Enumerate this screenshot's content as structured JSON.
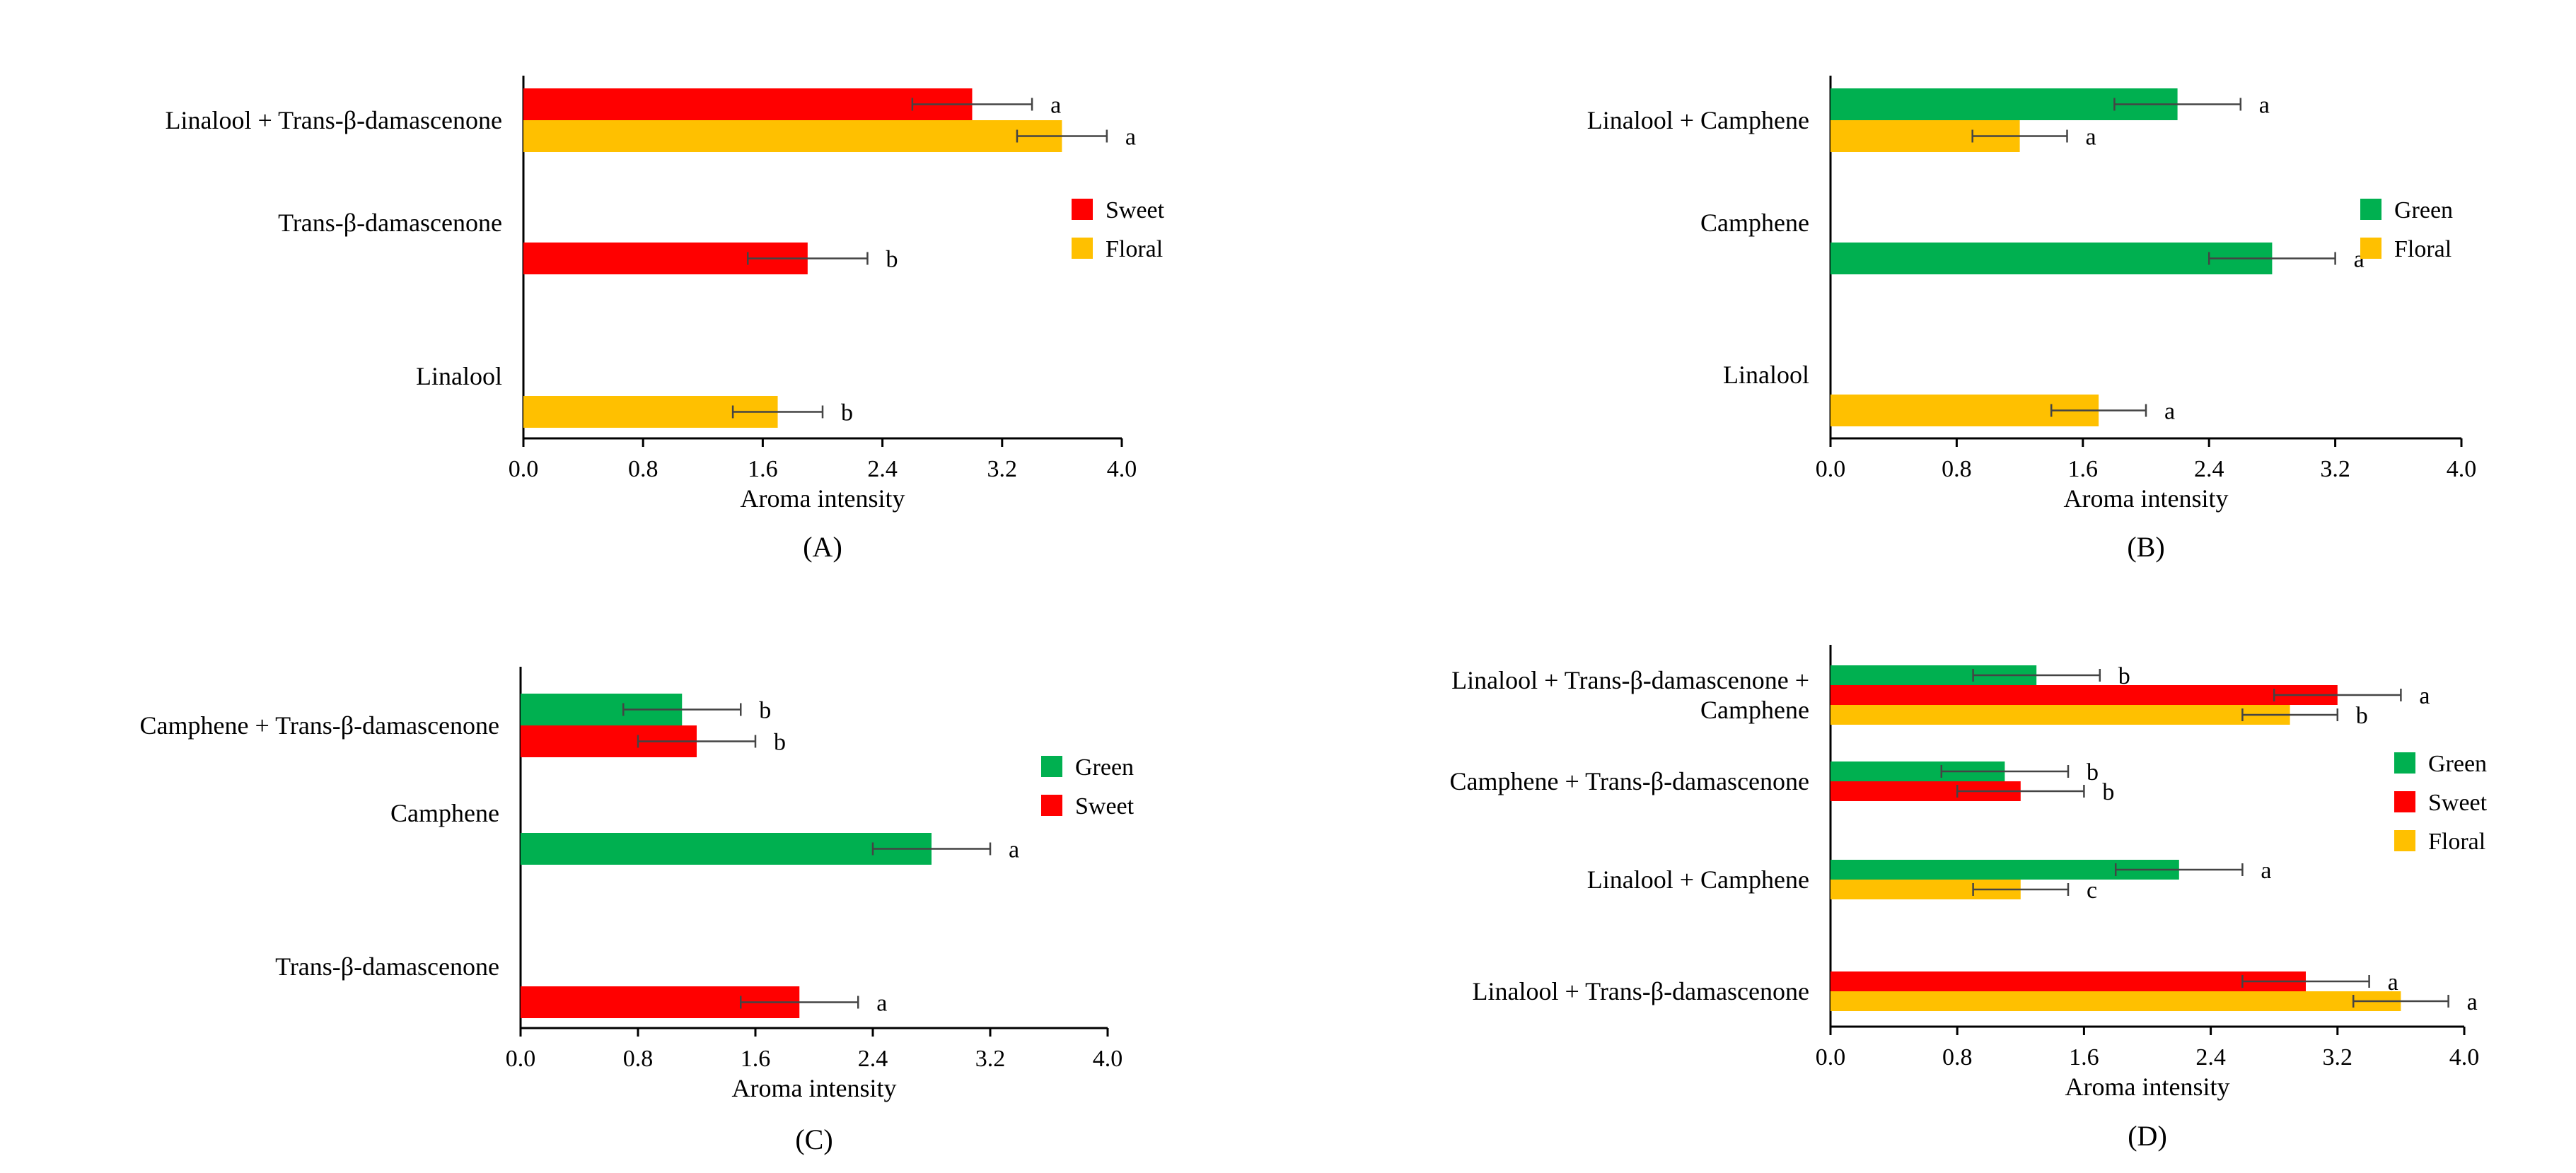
{
  "chart_data": [
    {
      "type": "bar",
      "orientation": "horizontal",
      "panel_label": "(A)",
      "xlabel": "Aroma intensity",
      "xlim": [
        0,
        4.0
      ],
      "xticks": [
        "0.0",
        "0.8",
        "1.6",
        "2.4",
        "3.2",
        "4.0"
      ],
      "grid": false,
      "legend_position": "right",
      "categories": [
        {
          "label": [
            "Linalool + Trans-β-damascenone"
          ],
          "bars": [
            {
              "series": "Sweet",
              "value": 3.0,
              "error": 0.4,
              "sig": "a"
            },
            {
              "series": "Floral",
              "value": 3.6,
              "error": 0.3,
              "sig": "a"
            }
          ]
        },
        {
          "label": [
            "Trans-β-damascenone"
          ],
          "bars": [
            {
              "series": "Sweet",
              "value": 1.9,
              "error": 0.4,
              "sig": "b"
            }
          ]
        },
        {
          "label": [
            "Linalool"
          ],
          "bars": [
            {
              "series": "Floral",
              "value": 1.7,
              "error": 0.3,
              "sig": "b"
            }
          ]
        }
      ],
      "series": [
        {
          "name": "Sweet",
          "color": "#ff0000"
        },
        {
          "name": "Floral",
          "color": "#ffc000"
        }
      ]
    },
    {
      "type": "bar",
      "orientation": "horizontal",
      "panel_label": "(B)",
      "xlabel": "Aroma intensity",
      "xlim": [
        0,
        4.0
      ],
      "xticks": [
        "0.0",
        "0.8",
        "1.6",
        "2.4",
        "3.2",
        "4.0"
      ],
      "grid": false,
      "legend_position": "right",
      "categories": [
        {
          "label": [
            "Linalool + Camphene"
          ],
          "bars": [
            {
              "series": "Green",
              "value": 2.2,
              "error": 0.4,
              "sig": "a"
            },
            {
              "series": "Floral",
              "value": 1.2,
              "error": 0.3,
              "sig": "a"
            }
          ]
        },
        {
          "label": [
            "Camphene"
          ],
          "bars": [
            {
              "series": "Green",
              "value": 2.8,
              "error": 0.4,
              "sig": "a"
            }
          ]
        },
        {
          "label": [
            "Linalool"
          ],
          "bars": [
            {
              "series": "Floral",
              "value": 1.7,
              "error": 0.3,
              "sig": "a"
            }
          ]
        }
      ],
      "series": [
        {
          "name": "Green",
          "color": "#00b050"
        },
        {
          "name": "Floral",
          "color": "#ffc000"
        }
      ]
    },
    {
      "type": "bar",
      "orientation": "horizontal",
      "panel_label": "(C)",
      "xlabel": "Aroma intensity",
      "xlim": [
        0,
        4.0
      ],
      "xticks": [
        "0.0",
        "0.8",
        "1.6",
        "2.4",
        "3.2",
        "4.0"
      ],
      "grid": false,
      "legend_position": "right",
      "categories": [
        {
          "label": [
            "Camphene + Trans-β-damascenone"
          ],
          "bars": [
            {
              "series": "Green",
              "value": 1.1,
              "error": 0.4,
              "sig": "b"
            },
            {
              "series": "Sweet",
              "value": 1.2,
              "error": 0.4,
              "sig": "b"
            }
          ]
        },
        {
          "label": [
            "Camphene"
          ],
          "bars": [
            {
              "series": "Green",
              "value": 2.8,
              "error": 0.4,
              "sig": "a"
            }
          ]
        },
        {
          "label": [
            "Trans-β-damascenone"
          ],
          "bars": [
            {
              "series": "Sweet",
              "value": 1.9,
              "error": 0.4,
              "sig": "a"
            }
          ]
        }
      ],
      "series": [
        {
          "name": "Green",
          "color": "#00b050"
        },
        {
          "name": "Sweet",
          "color": "#ff0000"
        }
      ]
    },
    {
      "type": "bar",
      "orientation": "horizontal",
      "panel_label": "(D)",
      "xlabel": "Aroma intensity",
      "xlim": [
        0,
        4.0
      ],
      "xticks": [
        "0.0",
        "0.8",
        "1.6",
        "2.4",
        "3.2",
        "4.0"
      ],
      "grid": false,
      "legend_position": "right",
      "categories": [
        {
          "label": [
            "Linalool + Trans-β-damascenone +",
            "Camphene"
          ],
          "bars": [
            {
              "series": "Green",
              "value": 1.3,
              "error": 0.4,
              "sig": "b"
            },
            {
              "series": "Sweet",
              "value": 3.2,
              "error": 0.4,
              "sig": "a"
            },
            {
              "series": "Floral",
              "value": 2.9,
              "error": 0.3,
              "sig": "b"
            }
          ]
        },
        {
          "label": [
            "Camphene + Trans-β-damascenone"
          ],
          "bars": [
            {
              "series": "Green",
              "value": 1.1,
              "error": 0.4,
              "sig": "b"
            },
            {
              "series": "Sweet",
              "value": 1.2,
              "error": 0.4,
              "sig": "b"
            }
          ]
        },
        {
          "label": [
            "Linalool + Camphene"
          ],
          "bars": [
            {
              "series": "Green",
              "value": 2.2,
              "error": 0.4,
              "sig": "a"
            },
            {
              "series": "Floral",
              "value": 1.2,
              "error": 0.3,
              "sig": "c"
            }
          ]
        },
        {
          "label": [
            "Linalool + Trans-β-damascenone"
          ],
          "bars": [
            {
              "series": "Sweet",
              "value": 3.0,
              "error": 0.4,
              "sig": "a"
            },
            {
              "series": "Floral",
              "value": 3.6,
              "error": 0.3,
              "sig": "a"
            }
          ]
        }
      ],
      "series": [
        {
          "name": "Green",
          "color": "#00b050"
        },
        {
          "name": "Sweet",
          "color": "#ff0000"
        },
        {
          "name": "Floral",
          "color": "#ffc000"
        }
      ]
    }
  ]
}
